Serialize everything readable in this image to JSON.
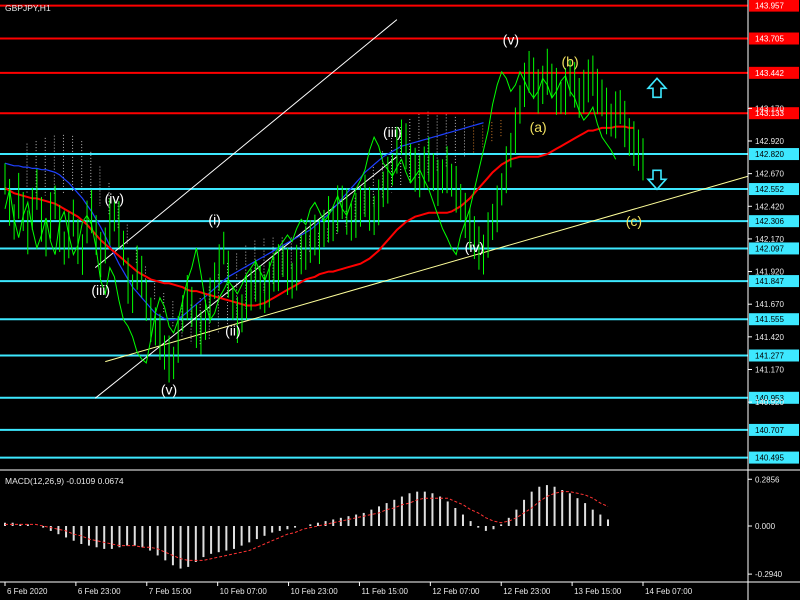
{
  "window": {
    "symbol_title": "GBPJPY,H1",
    "background": "#000000",
    "grid_color": "#ffffff"
  },
  "colors": {
    "candle": "#00ff00",
    "red_line": "#ff0000",
    "blue_line": "#1e40ff",
    "cyan_line": "#3de8ff",
    "channel": "#ffffff",
    "trendline_yellow": "#ffff9a",
    "cloud_white": "#e8e8e8",
    "cloud_orange": "#ff9933",
    "label_white": "#ffffff",
    "label_yellow": "#f0e060",
    "arrow_cyan": "#3de8ff",
    "macd_hist": "#e0e0e0",
    "macd_signal": "#ff3333"
  },
  "chart_data": {
    "type": "line",
    "instrument": "GBPJPY",
    "timeframe": "H1",
    "ylim": [
      140.4,
      144.0
    ],
    "grid": false,
    "y_ticks": [
      140.92,
      141.17,
      141.42,
      141.67,
      141.92,
      142.17,
      142.42,
      142.67,
      142.92,
      143.17
    ],
    "x_ticks": [
      "6 Feb 2020",
      "6 Feb 23:00",
      "7 Feb 15:00",
      "10 Feb 07:00",
      "10 Feb 23:00",
      "11 Feb 15:00",
      "12 Feb 07:00",
      "12 Feb 23:00",
      "13 Feb 15:00",
      "14 Feb 07:00"
    ],
    "x_tick_index": [
      0,
      16,
      32,
      48,
      64,
      80,
      96,
      112,
      128,
      144
    ],
    "levels": [
      {
        "value": 143.957,
        "label": "143.957",
        "color": "#ff0000"
      },
      {
        "value": 143.705,
        "label": "143.705",
        "color": "#ff0000"
      },
      {
        "value": 143.442,
        "label": "143.442",
        "color": "#ff0000"
      },
      {
        "value": 143.133,
        "label": "143.133",
        "color": "#ff0000"
      },
      {
        "value": 142.82,
        "label": "142.820",
        "color": "#3de8ff"
      },
      {
        "value": 142.552,
        "label": "142.552",
        "color": "#3de8ff"
      },
      {
        "value": 142.306,
        "label": "142.306",
        "color": "#3de8ff"
      },
      {
        "value": 142.097,
        "label": "142.097",
        "color": "#3de8ff"
      },
      {
        "value": 141.847,
        "label": "141.847",
        "color": "#3de8ff"
      },
      {
        "value": 141.555,
        "label": "141.555",
        "color": "#3de8ff"
      },
      {
        "value": 141.277,
        "label": "141.277",
        "color": "#3de8ff"
      },
      {
        "value": 140.953,
        "label": "140.953",
        "color": "#3de8ff"
      },
      {
        "value": 140.707,
        "label": "140.707",
        "color": "#3de8ff"
      },
      {
        "value": 140.495,
        "label": "140.495",
        "color": "#3de8ff"
      }
    ],
    "price": [
      142.63,
      142.45,
      142.3,
      142.5,
      142.38,
      142.22,
      142.4,
      142.55,
      142.32,
      142.18,
      142.35,
      142.45,
      142.25,
      142.1,
      142.2,
      142.33,
      142.15,
      142.05,
      142.3,
      142.38,
      142.2,
      142.05,
      142.12,
      142.3,
      142.35,
      142.28,
      142.1,
      141.85,
      141.75,
      141.95,
      141.88,
      141.7,
      141.55,
      141.5,
      141.42,
      141.3,
      141.25,
      141.22,
      141.4,
      141.6,
      141.72,
      141.65,
      141.5,
      141.45,
      141.55,
      141.7,
      141.85,
      141.95,
      142.1,
      141.9,
      141.68,
      141.55,
      141.6,
      141.72,
      141.78,
      141.85,
      141.8,
      141.75,
      141.82,
      141.9,
      141.95,
      142.0,
      141.92,
      141.85,
      141.95,
      142.05,
      142.1,
      142.15,
      142.2,
      142.15,
      142.25,
      142.32,
      142.28,
      142.4,
      142.45,
      142.38,
      142.3,
      142.35,
      142.42,
      142.5,
      142.4,
      142.35,
      142.45,
      142.55,
      142.62,
      142.7,
      142.85,
      142.95,
      142.88,
      142.75,
      142.7,
      142.65,
      142.72,
      142.78,
      142.68,
      142.6,
      142.65,
      142.7,
      142.62,
      142.55,
      142.45,
      142.35,
      142.25,
      142.18,
      142.1,
      142.05,
      142.2,
      142.3,
      142.4,
      142.55,
      142.7,
      142.85,
      143.0,
      143.2,
      143.35,
      143.45,
      143.4,
      143.3,
      143.35,
      143.45,
      143.38,
      143.3,
      143.25,
      143.3,
      143.4,
      143.35,
      143.25,
      143.3,
      143.38,
      143.42,
      143.3,
      143.25,
      143.15,
      143.08,
      143.12,
      143.18,
      143.05,
      142.95,
      142.9,
      142.85,
      142.78
    ],
    "red_ma": [
      142.56,
      142.54,
      142.52,
      142.51,
      142.5,
      142.49,
      142.48,
      142.48,
      142.47,
      142.46,
      142.45,
      142.44,
      142.42,
      142.4,
      142.38,
      142.36,
      142.34,
      142.31,
      142.28,
      142.24,
      142.2,
      142.16,
      142.13,
      142.1,
      142.07,
      142.04,
      142.01,
      141.98,
      141.95,
      141.92,
      141.9,
      141.88,
      141.86,
      141.85,
      141.84,
      141.83,
      141.83,
      141.82,
      141.81,
      141.8,
      141.78,
      141.77,
      141.77,
      141.76,
      141.75,
      141.74,
      141.73,
      141.72,
      141.71,
      141.7,
      141.69,
      141.68,
      141.67,
      141.66,
      141.66,
      141.66,
      141.67,
      141.68,
      141.7,
      141.72,
      141.74,
      141.76,
      141.78,
      141.8,
      141.82,
      141.84,
      141.86,
      141.87,
      141.88,
      141.9,
      141.91,
      141.92,
      141.92,
      141.93,
      141.94,
      141.95,
      141.96,
      141.97,
      141.98,
      142.0,
      142.02,
      142.05,
      142.08,
      142.12,
      142.16,
      142.2,
      142.24,
      142.27,
      142.3,
      142.32,
      142.34,
      142.35,
      142.36,
      142.37,
      142.37,
      142.37,
      142.37,
      142.37,
      142.38,
      142.4,
      142.42,
      142.45,
      142.48,
      142.52,
      142.56,
      142.6,
      142.64,
      142.68,
      142.71,
      142.74,
      142.76,
      142.78,
      142.79,
      142.8,
      142.8,
      142.8,
      142.8,
      142.8,
      142.81,
      142.82,
      142.84,
      142.86,
      142.88,
      142.9,
      142.92,
      142.94,
      142.96,
      142.98,
      143.0,
      143.0,
      143.01,
      143.02,
      143.02,
      143.02,
      143.03,
      143.03,
      143.03,
      143.02,
      143.02
    ],
    "blue_line": [
      142.75,
      142.74,
      142.73,
      142.73,
      142.72,
      142.72,
      142.71,
      142.71,
      142.7,
      142.7,
      142.69,
      142.68,
      142.66,
      142.63,
      142.6,
      142.56,
      142.52,
      142.48,
      142.43,
      142.38,
      142.32,
      142.26,
      142.19,
      142.12,
      142.05,
      141.98,
      141.92,
      141.86,
      141.8,
      141.76,
      141.72,
      141.68,
      141.64,
      141.6,
      141.58,
      141.56,
      141.55,
      141.55,
      141.56,
      141.58,
      141.61,
      141.64,
      141.67,
      141.7,
      141.73,
      141.76,
      141.79,
      141.82,
      141.85,
      141.88,
      141.9,
      141.92,
      141.94,
      141.96,
      141.98,
      142.0,
      142.02,
      142.04,
      142.06,
      142.08,
      142.1,
      142.12,
      142.14,
      142.16,
      142.18,
      142.2,
      142.22,
      142.24,
      142.27,
      142.3,
      142.33,
      142.36,
      142.4,
      142.44,
      142.48,
      142.52,
      142.56,
      142.6,
      142.64,
      142.68,
      142.71,
      142.74,
      142.77,
      142.8,
      142.82,
      142.84,
      142.86,
      142.88,
      142.89,
      142.9,
      142.91,
      142.92,
      142.93,
      142.94,
      142.95,
      142.96,
      142.97,
      142.98,
      142.99,
      143.0,
      143.01,
      143.02,
      143.03,
      143.04,
      143.05,
      143.06
    ],
    "wave_labels": [
      {
        "text": "(iv)",
        "index": 15,
        "value": 142.44,
        "color": "#ffffff"
      },
      {
        "text": "(iii)",
        "index": 13,
        "value": 141.74,
        "color": "#ffffff"
      },
      {
        "text": "(v)",
        "index": 22,
        "value": 140.98,
        "color": "#ffffff"
      },
      {
        "text": "(i)",
        "index": 28,
        "value": 142.28,
        "color": "#ffffff"
      },
      {
        "text": "(ii)",
        "index": 31,
        "value": 141.43,
        "color": "#ffffff"
      },
      {
        "text": "(iii)",
        "index": 52,
        "value": 142.95,
        "color": "#ffffff"
      },
      {
        "text": "(iv)",
        "index": 63,
        "value": 142.07,
        "color": "#ffffff"
      },
      {
        "text": "(v)",
        "index": 68,
        "value": 143.66,
        "color": "#ffffff"
      },
      {
        "text": "(a)",
        "index": 72,
        "value": 142.99,
        "color": "#f0e060"
      },
      {
        "text": "(b)",
        "index": 76,
        "value": 143.49,
        "color": "#f0e060"
      },
      {
        "text": "(c)",
        "index": 85,
        "value": 142.27,
        "color": "#f0e060"
      }
    ],
    "macd": {
      "title": "MACD(12,26,9) -0.0109 0.0674",
      "ylim": [
        -0.33,
        0.33
      ],
      "y_ticks": [
        0.2856,
        0.0,
        -0.294
      ],
      "y_tick_labels": [
        "0.2856",
        "0.000",
        "-0.2940"
      ],
      "histogram": [
        0.02,
        0.02,
        0.01,
        0.01,
        0.0,
        -0.01,
        -0.03,
        -0.05,
        -0.07,
        -0.09,
        -0.11,
        -0.12,
        -0.13,
        -0.14,
        -0.14,
        -0.13,
        -0.12,
        -0.12,
        -0.13,
        -0.15,
        -0.18,
        -0.21,
        -0.24,
        -0.26,
        -0.25,
        -0.22,
        -0.19,
        -0.17,
        -0.16,
        -0.15,
        -0.14,
        -0.12,
        -0.1,
        -0.08,
        -0.06,
        -0.04,
        -0.03,
        -0.02,
        -0.01,
        0.0,
        0.01,
        0.02,
        0.03,
        0.04,
        0.05,
        0.06,
        0.07,
        0.08,
        0.1,
        0.12,
        0.14,
        0.16,
        0.18,
        0.2,
        0.21,
        0.21,
        0.2,
        0.18,
        0.15,
        0.11,
        0.07,
        0.03,
        -0.01,
        -0.03,
        -0.02,
        0.01,
        0.05,
        0.1,
        0.16,
        0.21,
        0.24,
        0.25,
        0.24,
        0.22,
        0.2,
        0.17,
        0.14,
        0.1,
        0.07,
        0.04
      ],
      "signal": [
        0.01,
        0.01,
        0.01,
        0.01,
        0.01,
        0.0,
        -0.01,
        -0.02,
        -0.03,
        -0.05,
        -0.06,
        -0.08,
        -0.09,
        -0.1,
        -0.11,
        -0.12,
        -0.12,
        -0.12,
        -0.13,
        -0.13,
        -0.14,
        -0.16,
        -0.18,
        -0.2,
        -0.21,
        -0.21,
        -0.21,
        -0.2,
        -0.19,
        -0.18,
        -0.17,
        -0.16,
        -0.15,
        -0.13,
        -0.11,
        -0.09,
        -0.07,
        -0.05,
        -0.04,
        -0.02,
        -0.01,
        0.0,
        0.01,
        0.02,
        0.03,
        0.04,
        0.05,
        0.06,
        0.07,
        0.08,
        0.1,
        0.11,
        0.13,
        0.14,
        0.16,
        0.17,
        0.17,
        0.17,
        0.17,
        0.15,
        0.13,
        0.1,
        0.08,
        0.05,
        0.03,
        0.02,
        0.03,
        0.05,
        0.08,
        0.11,
        0.15,
        0.18,
        0.2,
        0.21,
        0.21,
        0.2,
        0.19,
        0.17,
        0.14,
        0.12
      ]
    }
  }
}
